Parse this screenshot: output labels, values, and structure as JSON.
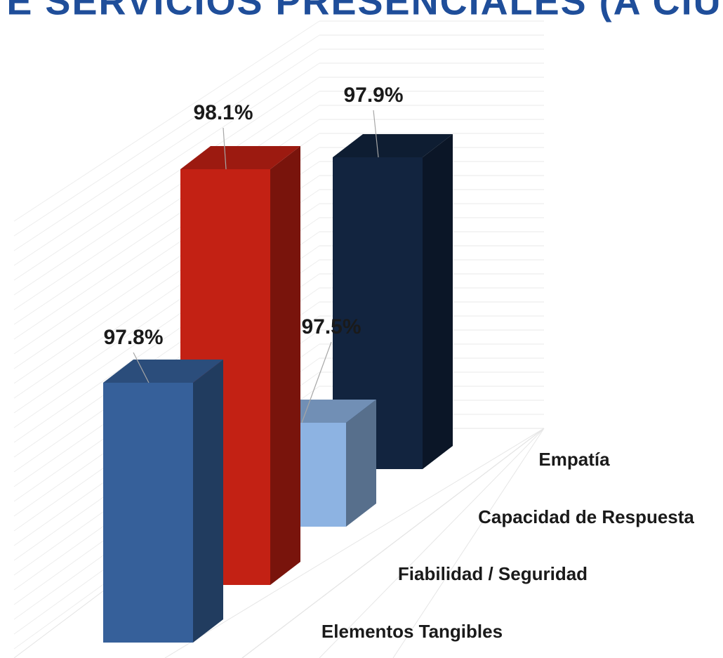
{
  "chart_data": {
    "type": "bar3d",
    "title": "E SERVICIOS PRESENCIALES (A CIUDA",
    "categories": [
      "Elementos Tangibles",
      "Fiabilidad / Seguridad",
      "Capacidad de Respuesta",
      "Empatía"
    ],
    "values": [
      97.8,
      98.1,
      97.5,
      97.9
    ],
    "value_labels": [
      "97.8%",
      "98.1%",
      "97.5%",
      "97.9%"
    ],
    "colors": [
      "#36609a",
      "#c32114",
      "#8db3e2",
      "#12243f"
    ],
    "ylim": [
      97.3,
      98.2
    ]
  }
}
